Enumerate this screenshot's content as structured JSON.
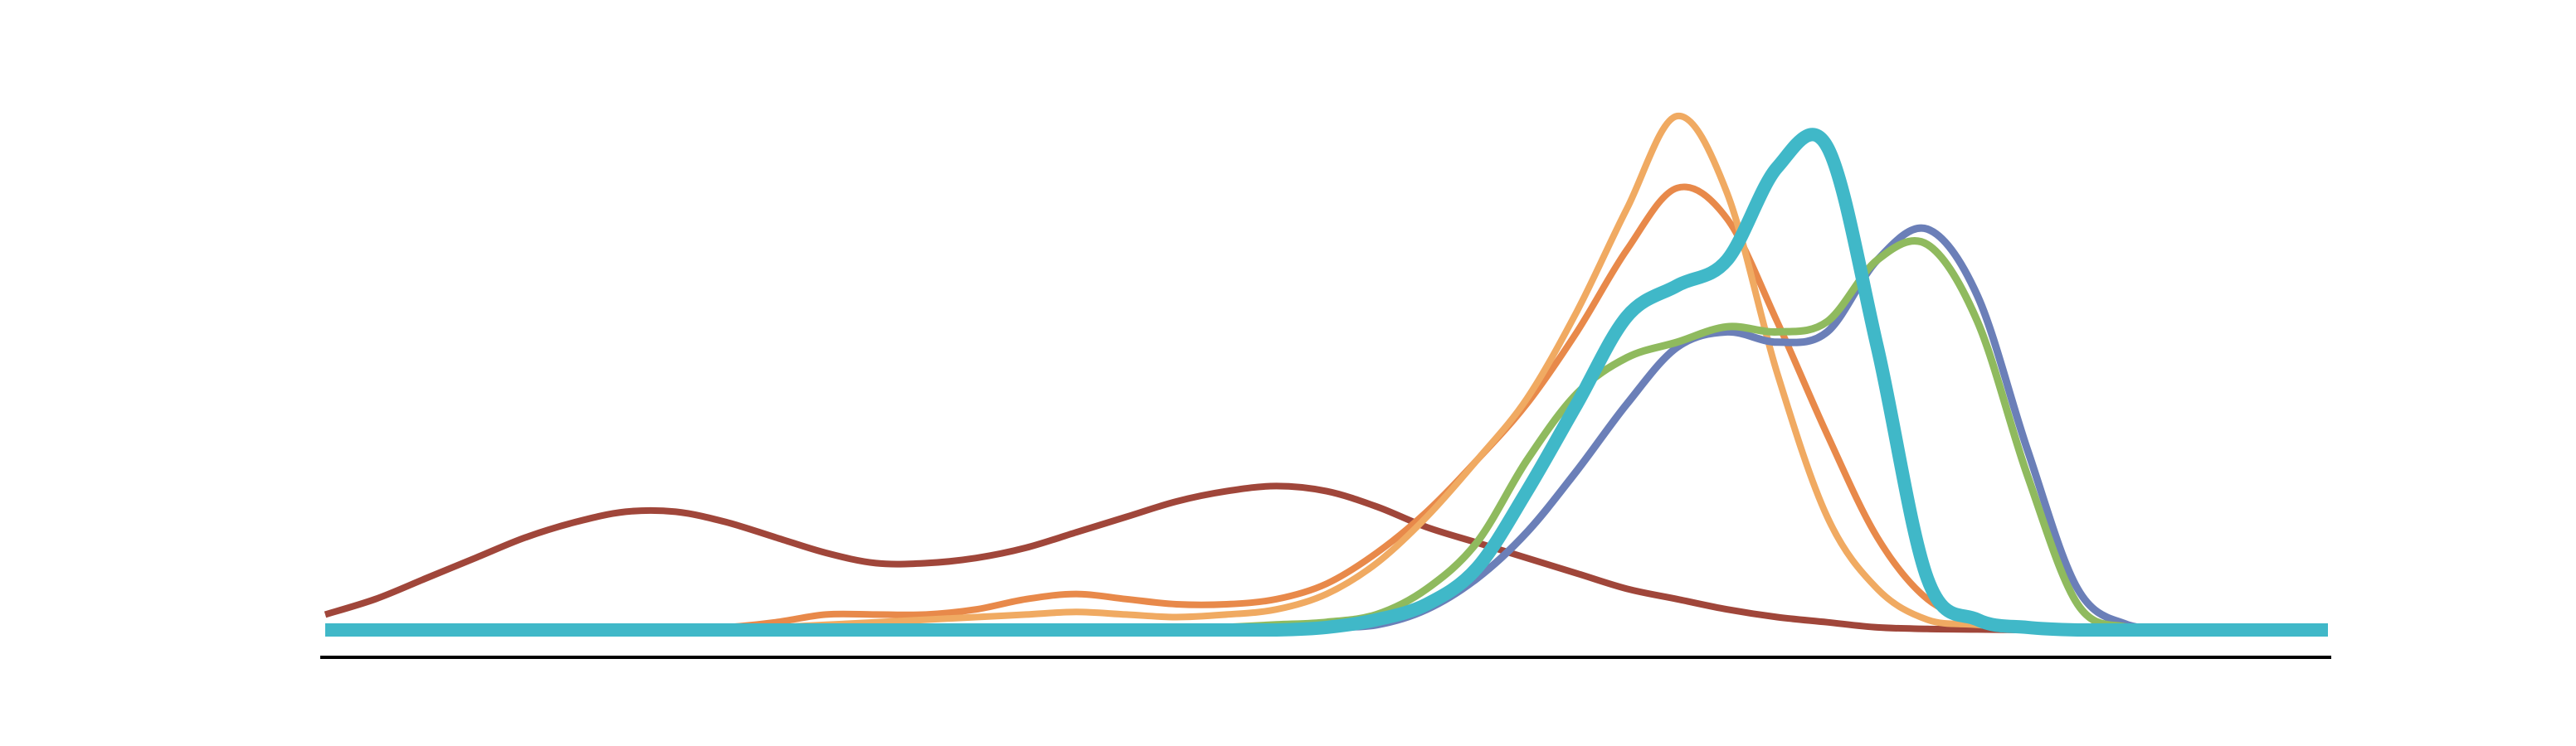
{
  "chart_data": {
    "type": "line",
    "title": "",
    "xlabel": "",
    "ylabel": "",
    "xlim": [
      0,
      100
    ],
    "ylim": [
      0,
      100
    ],
    "grid": false,
    "legend": "none",
    "baseline_color": "#000000",
    "x": [
      0,
      2.5,
      5,
      7.5,
      10,
      12.5,
      15,
      17.5,
      20,
      22.5,
      25,
      27.5,
      30,
      32.5,
      35,
      37.5,
      40,
      42.5,
      45,
      47.5,
      50,
      52.5,
      55,
      57.5,
      60,
      62.5,
      65,
      67.5,
      70,
      72.5,
      75,
      77.5,
      80,
      82.5,
      85,
      87.5,
      90,
      92.5,
      95,
      97.5,
      100
    ],
    "series": [
      {
        "color": "#a0463a",
        "values": [
          3,
          6,
          10,
          14,
          18,
          21,
          23,
          23,
          21,
          18,
          15,
          13,
          13,
          14,
          16,
          19,
          22,
          25,
          27,
          28,
          27,
          24,
          20,
          17,
          14,
          11,
          8,
          6,
          4,
          2.5,
          1.5,
          0.5,
          0.2,
          0.1,
          0,
          0,
          0,
          0,
          0,
          0,
          0
        ]
      },
      {
        "color": "#e8894a",
        "values": [
          0,
          0,
          0,
          0,
          0,
          0,
          0,
          0,
          0.5,
          1.5,
          3,
          3,
          3,
          4,
          6,
          7,
          6,
          5,
          5,
          6,
          9,
          15,
          23,
          33,
          44,
          58,
          74,
          86,
          80,
          60,
          38,
          18,
          6,
          2,
          1,
          0,
          0,
          0,
          0,
          0,
          0
        ]
      },
      {
        "color": "#f0aa62",
        "values": [
          0,
          0,
          0,
          0,
          0,
          0,
          0,
          0,
          0,
          0.5,
          1,
          1.5,
          2,
          2.5,
          3,
          3.5,
          3,
          2.5,
          3,
          4,
          7,
          13,
          22,
          33,
          45,
          62,
          82,
          100,
          85,
          50,
          22,
          8,
          2,
          1,
          0,
          0,
          0,
          0,
          0,
          0,
          0
        ]
      },
      {
        "color": "#6b7fb8",
        "values": [
          0,
          0,
          0,
          0,
          0,
          0,
          0,
          0,
          0,
          0,
          0,
          0,
          0,
          0,
          0,
          0,
          0,
          0,
          0,
          0,
          0.5,
          1,
          4,
          10,
          19,
          31,
          44,
          55,
          58,
          56,
          58,
          72,
          78,
          65,
          35,
          8,
          1,
          0,
          0,
          0,
          0
        ]
      },
      {
        "color": "#8fba5e",
        "values": [
          0,
          0,
          0,
          0,
          0,
          0,
          0,
          0,
          0,
          0,
          0,
          0,
          0,
          0,
          0,
          0,
          0,
          0,
          0.5,
          1,
          1.5,
          3,
          8,
          17,
          33,
          46,
          53,
          56,
          59,
          58,
          60,
          72,
          75,
          60,
          30,
          5,
          0.5,
          0,
          0,
          0,
          0
        ]
      },
      {
        "color": "#40b8c8",
        "values": [
          0,
          0,
          0,
          0,
          0,
          0,
          0,
          0,
          0,
          0,
          0,
          0,
          0,
          0,
          0,
          0,
          0,
          0,
          0,
          0,
          0.5,
          2,
          5,
          12,
          27,
          44,
          61,
          67,
          72,
          90,
          94,
          55,
          10,
          2,
          0.5,
          0,
          0,
          0,
          0,
          0,
          0
        ]
      }
    ]
  }
}
